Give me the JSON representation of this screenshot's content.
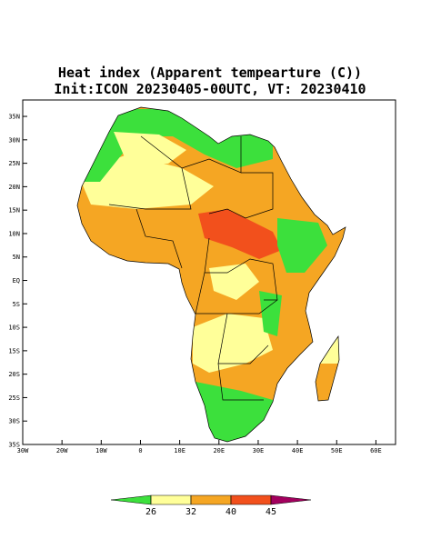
{
  "title": "Heat index (Apparent tempearture (C))",
  "subtitle": "Init:ICON 20230405-00UTC, VT: 20230410",
  "map": {
    "xlim": [
      -30,
      65
    ],
    "ylim": [
      -35,
      38.5
    ],
    "xticks": [
      {
        "value": -30,
        "label": "30W"
      },
      {
        "value": -20,
        "label": "20W"
      },
      {
        "value": -10,
        "label": "10W"
      },
      0,
      {
        "value": 10,
        "label": "10E"
      },
      {
        "value": 20,
        "label": "20E"
      },
      {
        "value": 30,
        "label": "30E"
      },
      {
        "value": 40,
        "label": "40E"
      },
      {
        "value": 50,
        "label": "50E"
      },
      {
        "value": 60,
        "label": "60E"
      }
    ],
    "yticks": [
      {
        "value": 35,
        "label": "35N"
      },
      {
        "value": 30,
        "label": "30N"
      },
      {
        "value": 25,
        "label": "25N"
      },
      {
        "value": 20,
        "label": "20N"
      },
      {
        "value": 15,
        "label": "15N"
      },
      {
        "value": 10,
        "label": "10N"
      },
      {
        "value": 5,
        "label": "5N"
      },
      {
        "value": 0,
        "label": "EQ"
      },
      {
        "value": -5,
        "label": "5S"
      },
      {
        "value": -10,
        "label": "10S"
      },
      {
        "value": -15,
        "label": "15S"
      },
      {
        "value": -20,
        "label": "20S"
      },
      {
        "value": -25,
        "label": "25S"
      },
      {
        "value": -30,
        "label": "30S"
      },
      {
        "value": -35,
        "label": "35S"
      }
    ]
  },
  "colorbar": {
    "levels": [
      26,
      32,
      40,
      45
    ],
    "colors": [
      "#3ce03c",
      "#ffff99",
      "#f5a623",
      "#f2501c",
      "#a3005e"
    ]
  }
}
